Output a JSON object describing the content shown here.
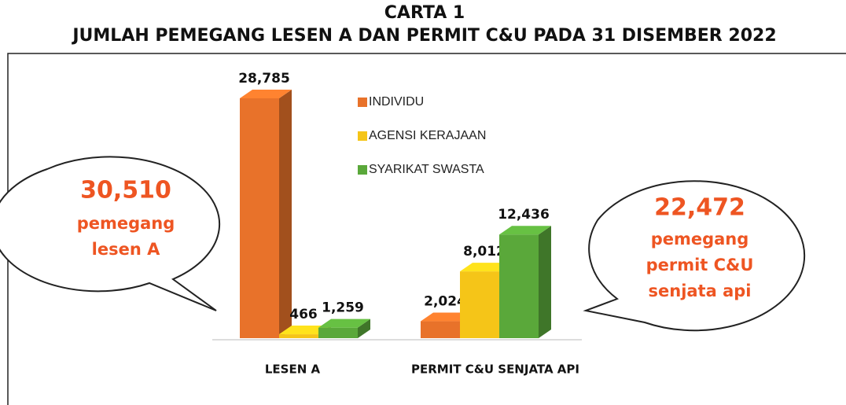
{
  "chart_data": {
    "type": "bar3d",
    "title": "CARTA 1",
    "subtitle": "JUMLAH PEMEGANG LESEN A DAN PERMIT C&U PADA 31 DISEMBER 2022",
    "categories": [
      "LESEN A",
      "PERMIT C&U SENJATA API"
    ],
    "series": [
      {
        "name": "INDIVIDU",
        "color": "#e8722a",
        "values": [
          28785,
          2024
        ],
        "value_labels": [
          "28,785",
          "2,024"
        ]
      },
      {
        "name": "AGENSI KERAJAAN",
        "color": "#f5c518",
        "values": [
          466,
          8012
        ],
        "value_labels": [
          "466",
          "8,012"
        ]
      },
      {
        "name": "SYARIKAT SWASTA",
        "color": "#5aa83a",
        "values": [
          1259,
          12436
        ],
        "value_labels": [
          "1,259",
          "12,436"
        ]
      }
    ],
    "annotations": [
      {
        "value": "30,510",
        "lines": [
          "pemegang",
          "lesen A"
        ]
      },
      {
        "value": "22,472",
        "lines": [
          "pemegang",
          "permit C&U",
          "senjata api"
        ]
      }
    ]
  }
}
